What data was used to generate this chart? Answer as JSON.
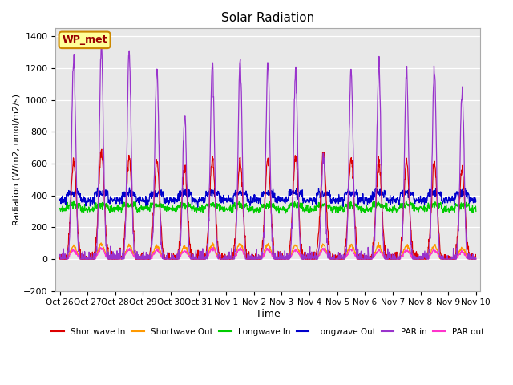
{
  "title": "Solar Radiation",
  "xlabel": "Time",
  "ylabel": "Radiation (W/m2, umol/m2/s)",
  "ylim": [
    -200,
    1450
  ],
  "yticks": [
    -200,
    0,
    200,
    400,
    600,
    800,
    1000,
    1200,
    1400
  ],
  "n_days": 15,
  "annotation_text": "WP_met",
  "annotation_bg": "#ffff99",
  "annotation_border": "#cc8800",
  "annotation_text_color": "#990000",
  "bg_color": "#e8e8e8",
  "series": {
    "shortwave_in": {
      "color": "#dd0000",
      "label": "Shortwave In"
    },
    "shortwave_out": {
      "color": "#ff9900",
      "label": "Shortwave Out"
    },
    "longwave_in": {
      "color": "#00cc00",
      "label": "Longwave In"
    },
    "longwave_out": {
      "color": "#0000cc",
      "label": "Longwave Out"
    },
    "par_in": {
      "color": "#9933cc",
      "label": "PAR in"
    },
    "par_out": {
      "color": "#ff33cc",
      "label": "PAR out"
    }
  },
  "x_tick_labels": [
    "Oct 26",
    "Oct 27",
    "Oct 28",
    "Oct 29",
    "Oct 30",
    "Oct 31",
    "Nov 1",
    "Nov 2",
    "Nov 3",
    "Nov 4",
    "Nov 5",
    "Nov 6",
    "Nov 7",
    "Nov 8",
    "Nov 9",
    "Nov 10"
  ],
  "peaks_par_in": [
    1270,
    1340,
    1300,
    1210,
    900,
    1230,
    1250,
    1225,
    1190,
    650,
    1200,
    1220,
    1175,
    1180,
    1055
  ],
  "peaks_sw_in": [
    620,
    680,
    640,
    620,
    580,
    640,
    610,
    630,
    640,
    650,
    620,
    610,
    610,
    600,
    555
  ],
  "peaks_sw_out": [
    80,
    95,
    85,
    80,
    75,
    90,
    95,
    90,
    85,
    90,
    90,
    85,
    85,
    85,
    70
  ],
  "peaks_par_out": [
    55,
    65,
    60,
    55,
    50,
    65,
    65,
    60,
    55,
    60,
    60,
    55,
    55,
    55,
    45
  ],
  "lw_in_base": 315,
  "lw_out_base": 370,
  "lw_in_day_bump": 25,
  "lw_out_day_bump": 45
}
